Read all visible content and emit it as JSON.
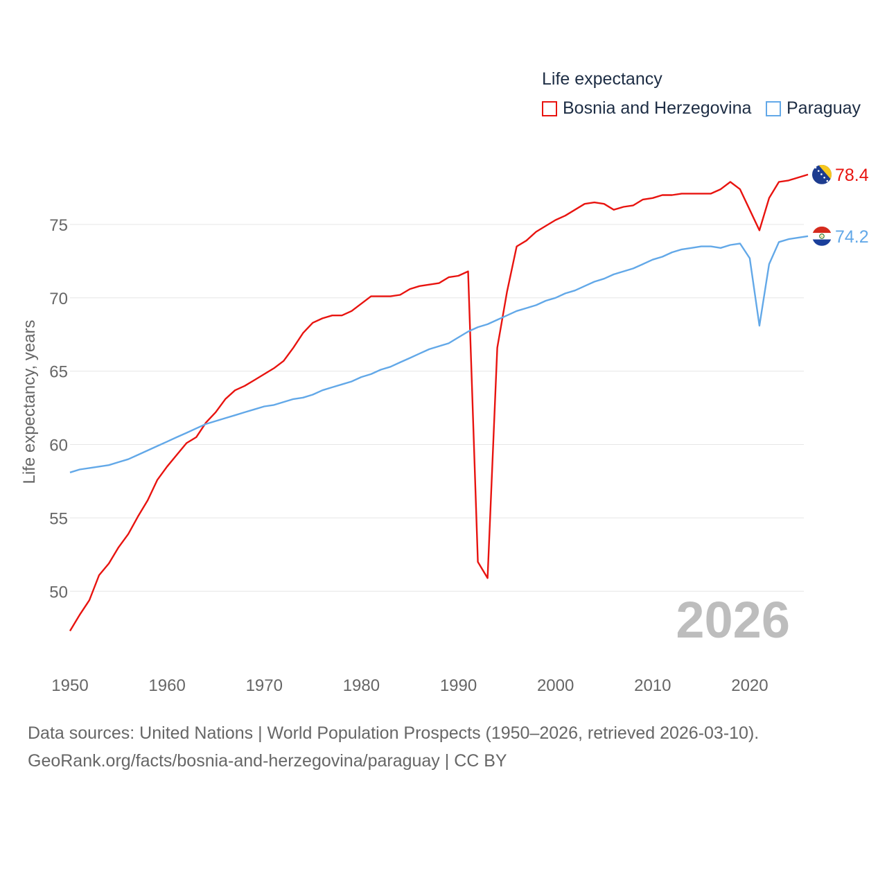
{
  "legend": {
    "title": "Life expectancy",
    "items": [
      {
        "label": "Bosnia and Herzegovina",
        "color": "#e8130f"
      },
      {
        "label": "Paraguay",
        "color": "#62a8e8"
      }
    ]
  },
  "source": {
    "line1": "Data sources: United Nations | World Population Prospects (1950–2026, retrieved 2026-03-10).",
    "line2": "GeoRank.org/facts/bosnia-and-herzegovina/paraguay | CC BY"
  },
  "chart_data": {
    "type": "line",
    "title": "Life expectancy",
    "xlabel": "",
    "ylabel": "Life expectancy, years",
    "year_label": "2026",
    "xlim": [
      1950,
      2026
    ],
    "ylim": [
      46,
      80
    ],
    "xticks": [
      1950,
      1960,
      1970,
      1980,
      1990,
      2000,
      2010,
      2020
    ],
    "yticks": [
      50,
      55,
      60,
      65,
      70,
      75
    ],
    "grid": true,
    "legend_position": "top-right",
    "series": [
      {
        "name": "Bosnia and Herzegovina",
        "color": "#e8130f",
        "end_label": "78.4",
        "flag": "bosnia",
        "x": [
          1950,
          1951,
          1952,
          1953,
          1954,
          1955,
          1956,
          1957,
          1958,
          1959,
          1960,
          1961,
          1962,
          1963,
          1964,
          1965,
          1966,
          1967,
          1968,
          1969,
          1970,
          1971,
          1972,
          1973,
          1974,
          1975,
          1976,
          1977,
          1978,
          1979,
          1980,
          1981,
          1982,
          1983,
          1984,
          1985,
          1986,
          1987,
          1988,
          1989,
          1990,
          1991,
          1992,
          1993,
          1994,
          1995,
          1996,
          1997,
          1998,
          1999,
          2000,
          2001,
          2002,
          2003,
          2004,
          2005,
          2006,
          2007,
          2008,
          2009,
          2010,
          2011,
          2012,
          2013,
          2014,
          2015,
          2016,
          2017,
          2018,
          2019,
          2020,
          2021,
          2022,
          2023,
          2024,
          2025,
          2026
        ],
        "values": [
          47.3,
          48.4,
          49.4,
          51.1,
          51.9,
          53.0,
          53.9,
          55.1,
          56.2,
          57.6,
          58.5,
          59.3,
          60.1,
          60.5,
          61.5,
          62.2,
          63.1,
          63.7,
          64.0,
          64.4,
          64.8,
          65.2,
          65.7,
          66.6,
          67.6,
          68.3,
          68.6,
          68.8,
          68.8,
          69.1,
          69.6,
          70.1,
          70.1,
          70.1,
          70.2,
          70.6,
          70.8,
          70.9,
          71.0,
          71.4,
          71.5,
          71.8,
          52.0,
          50.9,
          66.6,
          70.4,
          73.5,
          73.9,
          74.5,
          74.9,
          75.3,
          75.6,
          76.0,
          76.4,
          76.5,
          76.4,
          76.0,
          76.2,
          76.3,
          76.7,
          76.8,
          77.0,
          77.0,
          77.1,
          77.1,
          77.1,
          77.1,
          77.4,
          77.9,
          77.4,
          76.0,
          74.6,
          76.8,
          77.9,
          78.0,
          78.2,
          78.4
        ]
      },
      {
        "name": "Paraguay",
        "color": "#62a8e8",
        "end_label": "74.2",
        "flag": "paraguay",
        "x": [
          1950,
          1951,
          1952,
          1953,
          1954,
          1955,
          1956,
          1957,
          1958,
          1959,
          1960,
          1961,
          1962,
          1963,
          1964,
          1965,
          1966,
          1967,
          1968,
          1969,
          1970,
          1971,
          1972,
          1973,
          1974,
          1975,
          1976,
          1977,
          1978,
          1979,
          1980,
          1981,
          1982,
          1983,
          1984,
          1985,
          1986,
          1987,
          1988,
          1989,
          1990,
          1991,
          1992,
          1993,
          1994,
          1995,
          1996,
          1997,
          1998,
          1999,
          2000,
          2001,
          2002,
          2003,
          2004,
          2005,
          2006,
          2007,
          2008,
          2009,
          2010,
          2011,
          2012,
          2013,
          2014,
          2015,
          2016,
          2017,
          2018,
          2019,
          2020,
          2021,
          2022,
          2023,
          2024,
          2025,
          2026
        ],
        "values": [
          58.1,
          58.3,
          58.4,
          58.5,
          58.6,
          58.8,
          59.0,
          59.3,
          59.6,
          59.9,
          60.2,
          60.5,
          60.8,
          61.1,
          61.4,
          61.6,
          61.8,
          62.0,
          62.2,
          62.4,
          62.6,
          62.7,
          62.9,
          63.1,
          63.2,
          63.4,
          63.7,
          63.9,
          64.1,
          64.3,
          64.6,
          64.8,
          65.1,
          65.3,
          65.6,
          65.9,
          66.2,
          66.5,
          66.7,
          66.9,
          67.3,
          67.7,
          68.0,
          68.2,
          68.5,
          68.8,
          69.1,
          69.3,
          69.5,
          69.8,
          70.0,
          70.3,
          70.5,
          70.8,
          71.1,
          71.3,
          71.6,
          71.8,
          72.0,
          72.3,
          72.6,
          72.8,
          73.1,
          73.3,
          73.4,
          73.5,
          73.5,
          73.4,
          73.6,
          73.7,
          72.7,
          68.1,
          72.3,
          73.8,
          74.0,
          74.1,
          74.2
        ]
      }
    ]
  }
}
